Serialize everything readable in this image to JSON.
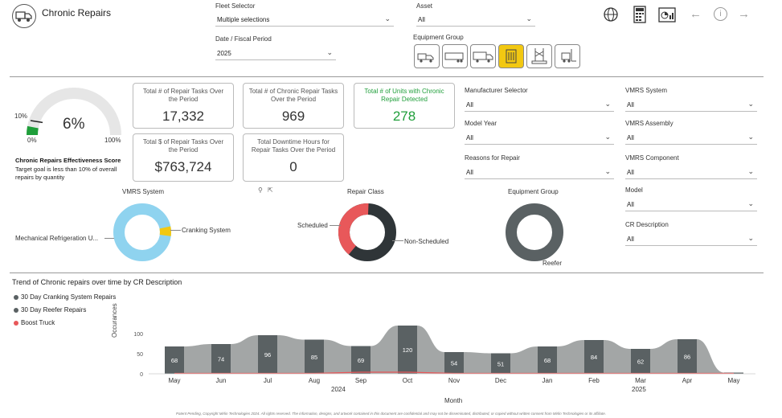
{
  "header": {
    "title": "Chronic Repairs",
    "fleet_selector": {
      "label": "Fleet Selector",
      "value": "Multiple selections"
    },
    "asset": {
      "label": "Asset",
      "value": "All"
    },
    "period": {
      "label": "Date / Fiscal Period",
      "value": "2025"
    },
    "equipment_group_label": "Equipment Group",
    "nav_icons": [
      "globe-icon",
      "calculator-icon",
      "report-icon",
      "back-arrow-icon",
      "info-icon",
      "forward-arrow-icon"
    ]
  },
  "gauge": {
    "value_text": "6%",
    "target_text": "10%",
    "min_text": "0%",
    "max_text": "100%",
    "value": 6,
    "target": 10,
    "title": "Chronic Repairs Effectiveness Score",
    "description": "Target goal is less than 10% of overall repairs by quantity"
  },
  "kpis": [
    {
      "title": "Total # of Repair Tasks Over the Period",
      "value": "17,332"
    },
    {
      "title": "Total # of Chronic Repair Tasks Over the Period",
      "value": "969"
    },
    {
      "title": "Total # of Units with Chronic Repair Detected",
      "value": "278"
    },
    {
      "title": "Total $ of Repair Tasks Over the Period",
      "value": "$763,724"
    },
    {
      "title": "Total Downtime Hours for Repair Tasks Over the Period",
      "value": "0"
    }
  ],
  "filters": {
    "manufacturer": {
      "label": "Manufacturer Selector",
      "value": "All"
    },
    "model_year": {
      "label": "Model Year",
      "value": "All"
    },
    "reasons": {
      "label": "Reasons for Repair",
      "value": "All"
    },
    "vmrs_system": {
      "label": "VMRS System",
      "value": "All"
    },
    "vmrs_assembly": {
      "label": "VMRS Assembly",
      "value": "All"
    },
    "vmrs_component": {
      "label": "VMRS Component",
      "value": "All"
    },
    "model": {
      "label": "Model",
      "value": "All"
    },
    "cr_description": {
      "label": "CR Description",
      "value": "All"
    }
  },
  "donuts": {
    "vmrs": {
      "title": "VMRS System",
      "label_a": "Mechanical Refrigeration U...",
      "label_b": "Cranking System",
      "color_a": "#8fd3ef",
      "color_b": "#f2c811"
    },
    "repair_class": {
      "title": "Repair Class",
      "label_a": "Scheduled",
      "label_b": "Non-Scheduled",
      "color_a": "#e8585a",
      "color_b": "#2f3538"
    },
    "equipment": {
      "title": "Equipment Group",
      "label_a": "Reefer",
      "color_a": "#5a6163"
    }
  },
  "trend": {
    "title": "Trend of Chronic repairs over time by CR Description",
    "legend": [
      {
        "name": "30 Day Cranking System Repairs",
        "color": "#5a6163"
      },
      {
        "name": "30 Day Reefer Repairs",
        "color": "#5a6163"
      },
      {
        "name": "Boost Truck",
        "color": "#e8585a"
      }
    ],
    "ylabel": "Occurances",
    "xlabel": "Month",
    "year_2024": "2024",
    "year_2025": "2025"
  },
  "chart_data": {
    "type": "area",
    "title": "Trend of Chronic repairs over time by CR Description",
    "xlabel": "Month",
    "ylabel": "Occurances",
    "ylim": [
      0,
      100
    ],
    "yticks": [
      0,
      50,
      100
    ],
    "categories": [
      "May",
      "Jun",
      "Jul",
      "Aug",
      "Sep",
      "Oct",
      "Nov",
      "Dec",
      "Jan",
      "Feb",
      "Mar",
      "Apr",
      "May"
    ],
    "values": [
      68,
      74,
      96,
      85,
      69,
      120,
      54,
      51,
      68,
      84,
      62,
      86,
      3
    ],
    "data_labels": [
      "68",
      "74",
      "96",
      "85",
      "69",
      "120",
      "54",
      "51",
      "68",
      "84",
      "62",
      "86",
      ""
    ],
    "boost_truck": [
      0,
      0,
      0,
      0,
      3,
      3,
      0,
      0,
      0,
      0,
      0,
      0,
      0
    ],
    "colors": {
      "ribbon": "#a3a6a6",
      "bar": "#5a6163",
      "boost": "#e8585a"
    }
  },
  "footer": "Patent Pending, Copyright Mirlin Technologies 2024. All rights reserved. The information, designs, and artwork contained in this document are confidential and may not be disseminated, distributed, or copied without written consent from Mirlin Technologies or its affiliate."
}
